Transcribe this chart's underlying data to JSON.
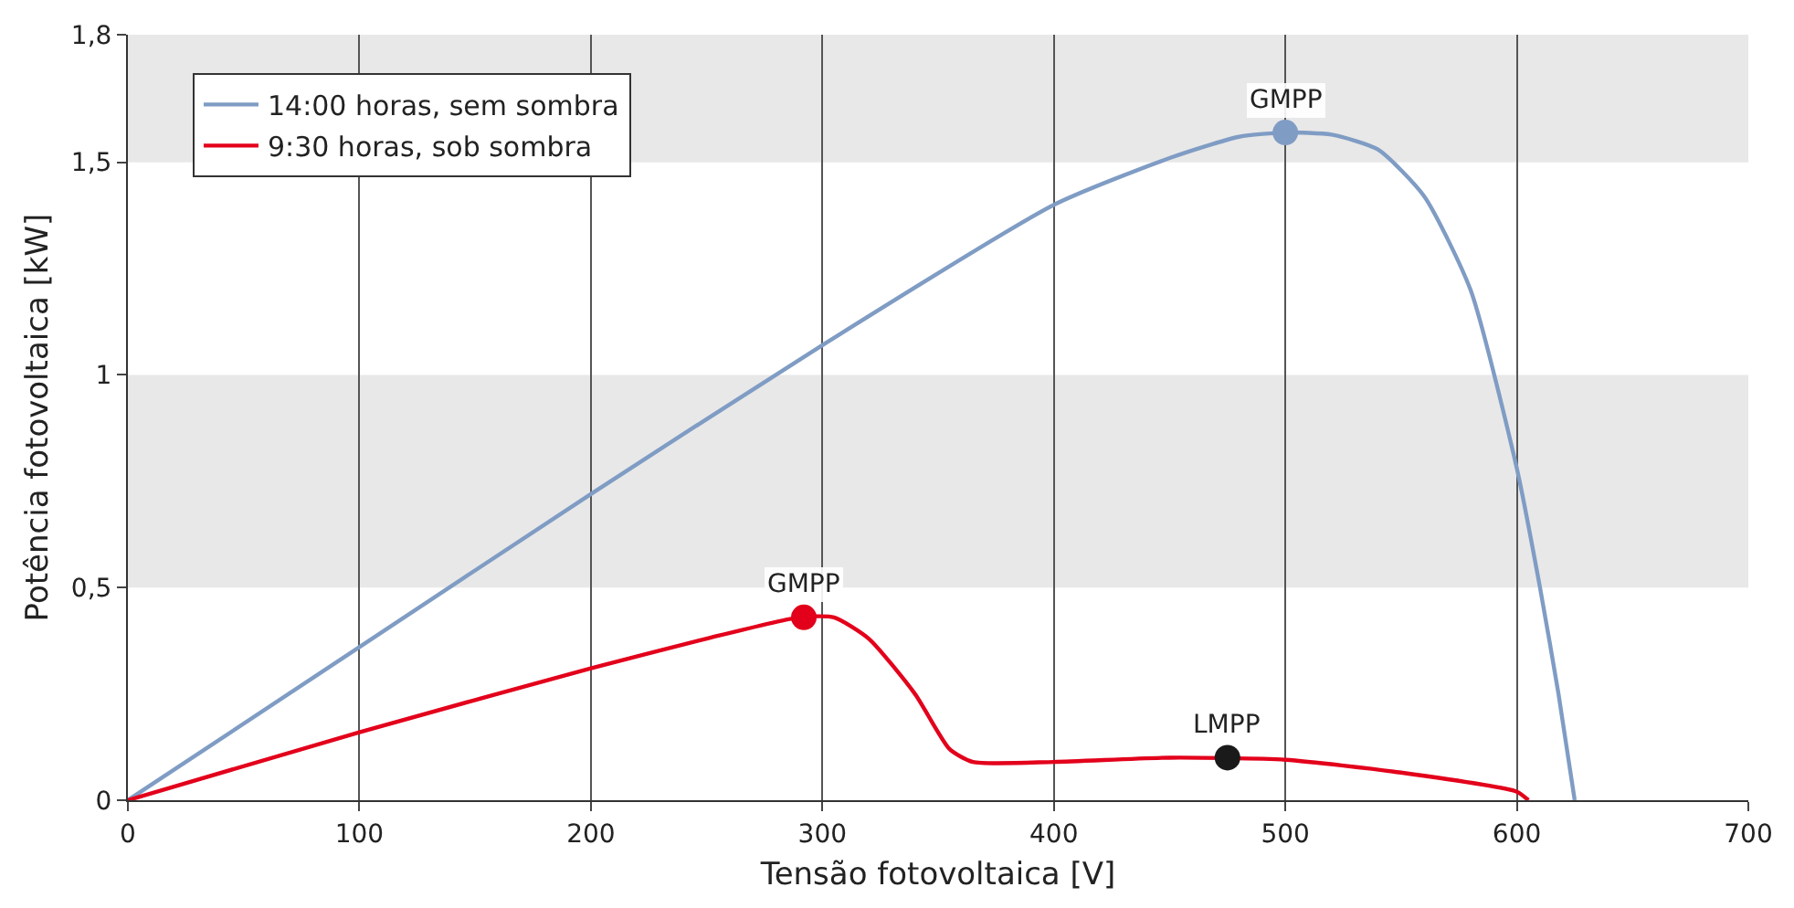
{
  "chart_data": {
    "type": "line",
    "xlabel": "Tensão fotovoltaica [V]",
    "ylabel": "Potência fotovoltaica [kW]",
    "xlim": [
      0,
      700
    ],
    "xticks": [
      0,
      100,
      200,
      300,
      400,
      500,
      600,
      700
    ],
    "ylim": [
      0,
      1.8
    ],
    "yticks": [
      0,
      {
        "value": 0.5,
        "label": "0,5"
      },
      1,
      {
        "value": 1.5,
        "label": "1,5"
      },
      {
        "value": 1.8,
        "label": "1,8"
      }
    ],
    "grid": "x",
    "legend": "top left",
    "marker": "none",
    "line_style": "solid",
    "bands": [
      {
        "axis": "y",
        "from": 0.5,
        "to": 1,
        "color": "#e8e8e8"
      },
      {
        "axis": "y",
        "from": 1.5,
        "to": 1.8,
        "color": "#e8e8e8"
      }
    ],
    "series": [
      {
        "name": "14:00 horas, sem sombra",
        "color": "#7f9cc4",
        "x": [
          0,
          100,
          200,
          300,
          400,
          450,
          480,
          500,
          520,
          540,
          560,
          580,
          600,
          610,
          618,
          625
        ],
        "values": [
          0,
          0.36,
          0.72,
          1.07,
          1.4,
          1.51,
          1.56,
          1.57,
          1.565,
          1.53,
          1.42,
          1.2,
          0.78,
          0.5,
          0.25,
          0
        ]
      },
      {
        "name": "9:30 horas, sob sombra",
        "color": "#e3001b",
        "x": [
          0,
          100,
          200,
          250,
          290,
          305,
          320,
          340,
          355,
          365,
          400,
          450,
          500,
          550,
          600,
          605
        ],
        "values": [
          0,
          0.16,
          0.31,
          0.38,
          0.43,
          0.43,
          0.38,
          0.25,
          0.12,
          0.09,
          0.09,
          0.1,
          0.095,
          0.065,
          0.02,
          0
        ]
      },
      {
        "type": "scatter",
        "marker": "circle",
        "color": "#7f9cc4",
        "x": [
          500
        ],
        "values": [
          1.57
        ]
      },
      {
        "type": "scatter",
        "marker": "circle",
        "color": "#e3001b",
        "x": [
          292
        ],
        "values": [
          0.43
        ]
      },
      {
        "type": "scatter",
        "marker": "circle",
        "color": "#1a1a1a",
        "x": [
          475
        ],
        "values": [
          0.1
        ]
      }
    ],
    "annotations": [
      {
        "text": "GMPP",
        "x": 500,
        "y": 1.57
      },
      {
        "text": "GMPP",
        "x": 292,
        "y": 0.43
      },
      {
        "text": "LMPP",
        "x": 475,
        "y": 0.1
      }
    ]
  }
}
